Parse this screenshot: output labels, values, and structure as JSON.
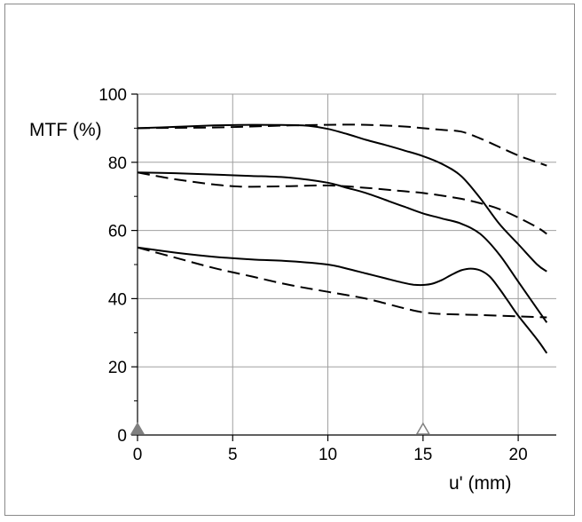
{
  "chart_data": {
    "type": "line",
    "title": "",
    "xlabel": "u' (mm)",
    "ylabel": "MTF (%)",
    "xlim": [
      0,
      22
    ],
    "ylim": [
      0,
      100
    ],
    "x_ticks": [
      0,
      5,
      10,
      15,
      20
    ],
    "y_ticks": [
      0,
      20,
      40,
      60,
      80,
      100
    ],
    "y_minor_ticks": [
      10,
      30,
      50,
      70,
      90
    ],
    "x_tick_labels": [
      "0",
      "5",
      "10",
      "15",
      "20"
    ],
    "y_tick_labels": [
      "0",
      "20",
      "40",
      "60",
      "80",
      "100"
    ],
    "grid": true,
    "legend": "none",
    "markers": [
      {
        "x": 0,
        "y": 0,
        "shape": "triangle",
        "style": "filled",
        "color": "#808080"
      },
      {
        "x": 15,
        "y": 0,
        "shape": "triangle",
        "style": "outline",
        "color": "#808080"
      }
    ],
    "series": [
      {
        "style": "solid",
        "color": "#000000",
        "points": [
          [
            0,
            90
          ],
          [
            2,
            90.4
          ],
          [
            4,
            90.8
          ],
          [
            6,
            91
          ],
          [
            8,
            90.9
          ],
          [
            9,
            90.7
          ],
          [
            10,
            89.8
          ],
          [
            11,
            88.3
          ],
          [
            12,
            86.6
          ],
          [
            13,
            85.1
          ],
          [
            14,
            83.5
          ],
          [
            15,
            81.8
          ],
          [
            16,
            79.5
          ],
          [
            17,
            76
          ],
          [
            18,
            69.5
          ],
          [
            19,
            62
          ],
          [
            20,
            56
          ],
          [
            21,
            50
          ],
          [
            21.5,
            48
          ]
        ]
      },
      {
        "style": "dashed",
        "color": "#000000",
        "points": [
          [
            0,
            90
          ],
          [
            2,
            90.1
          ],
          [
            4,
            90.2
          ],
          [
            6,
            90.5
          ],
          [
            8,
            90.8
          ],
          [
            10,
            91
          ],
          [
            12,
            91
          ],
          [
            14,
            90.5
          ],
          [
            15,
            90
          ],
          [
            16,
            89.5
          ],
          [
            17,
            89
          ],
          [
            18,
            87
          ],
          [
            19,
            84.5
          ],
          [
            20,
            82
          ],
          [
            21,
            80
          ],
          [
            21.5,
            79
          ]
        ]
      },
      {
        "style": "solid",
        "color": "#000000",
        "points": [
          [
            0,
            77
          ],
          [
            2,
            76.8
          ],
          [
            4,
            76.4
          ],
          [
            6,
            76
          ],
          [
            8,
            75.5
          ],
          [
            10,
            74
          ],
          [
            11,
            72.5
          ],
          [
            12,
            71
          ],
          [
            13,
            69
          ],
          [
            14,
            67
          ],
          [
            15,
            65
          ],
          [
            16,
            63.5
          ],
          [
            17,
            62
          ],
          [
            18,
            59
          ],
          [
            19,
            53
          ],
          [
            20,
            45
          ],
          [
            21,
            37
          ],
          [
            21.5,
            33
          ]
        ]
      },
      {
        "style": "dashed",
        "color": "#000000",
        "points": [
          [
            0,
            77
          ],
          [
            2,
            75
          ],
          [
            4,
            73.5
          ],
          [
            5,
            73
          ],
          [
            6,
            72.8
          ],
          [
            8,
            73
          ],
          [
            10,
            73.2
          ],
          [
            12,
            72.5
          ],
          [
            14,
            71.5
          ],
          [
            15,
            71
          ],
          [
            16,
            70.2
          ],
          [
            17,
            69.3
          ],
          [
            18,
            68
          ],
          [
            19,
            66.3
          ],
          [
            20,
            63.8
          ],
          [
            21,
            60.9
          ],
          [
            21.5,
            59
          ]
        ]
      },
      {
        "style": "solid",
        "color": "#000000",
        "points": [
          [
            0,
            55
          ],
          [
            2,
            53.5
          ],
          [
            4,
            52.3
          ],
          [
            6,
            51.5
          ],
          [
            8,
            51
          ],
          [
            10,
            50
          ],
          [
            11,
            48.8
          ],
          [
            12,
            47.4
          ],
          [
            13,
            46
          ],
          [
            14,
            44.6
          ],
          [
            14.5,
            44.1
          ],
          [
            15,
            44
          ],
          [
            15.5,
            44.4
          ],
          [
            16,
            45.5
          ],
          [
            16.5,
            47
          ],
          [
            17,
            48.3
          ],
          [
            17.5,
            48.8
          ],
          [
            18,
            48.3
          ],
          [
            18.5,
            46.5
          ],
          [
            19,
            43
          ],
          [
            19.5,
            39
          ],
          [
            20,
            35
          ],
          [
            21,
            28
          ],
          [
            21.5,
            24
          ]
        ]
      },
      {
        "style": "dashed",
        "color": "#000000",
        "points": [
          [
            0,
            55
          ],
          [
            2,
            52
          ],
          [
            4,
            49
          ],
          [
            6,
            46.5
          ],
          [
            8,
            44
          ],
          [
            10,
            42
          ],
          [
            12,
            40
          ],
          [
            14,
            37.2
          ],
          [
            15,
            36
          ],
          [
            16,
            35.5
          ],
          [
            18,
            35.2
          ],
          [
            20,
            34.8
          ],
          [
            21.5,
            34.5
          ]
        ]
      }
    ]
  }
}
